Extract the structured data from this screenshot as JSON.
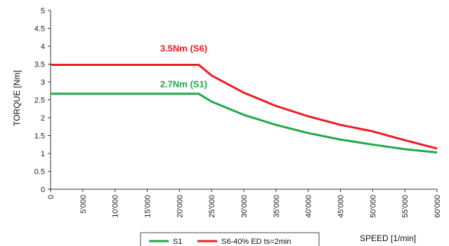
{
  "chart_data": {
    "type": "line",
    "title": "",
    "xlabel": "SPEED  [1/min]",
    "ylabel": "TORQUE  [Nm]",
    "xlim": [
      0,
      60000
    ],
    "ylim": [
      0,
      5
    ],
    "xticks": [
      0,
      5000,
      10000,
      15000,
      20000,
      25000,
      30000,
      35000,
      40000,
      45000,
      50000,
      55000,
      60000
    ],
    "xtick_labels": [
      "0",
      "5'000",
      "10'000",
      "15'000",
      "20'000",
      "25'000",
      "30'000",
      "35'000",
      "40'000",
      "45'000",
      "50'000",
      "55'000",
      "60'000"
    ],
    "yticks": [
      0,
      0.5,
      1,
      1.5,
      2,
      2.5,
      3,
      3.5,
      4,
      4.5,
      5
    ],
    "ytick_labels": [
      "0",
      "0.5",
      "1",
      "1.5",
      "2",
      "2.5",
      "3",
      "3.5",
      "4",
      "4.5",
      "5"
    ],
    "grid": false,
    "legend_position": "bottom",
    "series": [
      {
        "name": "S1",
        "color": "#22a84a",
        "x": [
          0,
          23000,
          25000,
          30000,
          35000,
          40000,
          45000,
          50000,
          55000,
          60000
        ],
        "y": [
          2.67,
          2.67,
          2.45,
          2.08,
          1.8,
          1.57,
          1.39,
          1.25,
          1.12,
          1.03
        ]
      },
      {
        "name": "S6-40% ED ts=2min",
        "color": "#ee1c24",
        "x": [
          0,
          23000,
          25000,
          30000,
          35000,
          40000,
          45000,
          50000,
          55000,
          60000
        ],
        "y": [
          3.48,
          3.48,
          3.18,
          2.7,
          2.33,
          2.04,
          1.8,
          1.62,
          1.37,
          1.14
        ]
      }
    ],
    "annotations": [
      {
        "text": "3.5Nm (S6)",
        "color": "#ee1c24",
        "x": 17000,
        "y": 3.85
      },
      {
        "text": "2.7Nm (S1)",
        "color": "#22a84a",
        "x": 17000,
        "y": 2.85
      }
    ]
  }
}
